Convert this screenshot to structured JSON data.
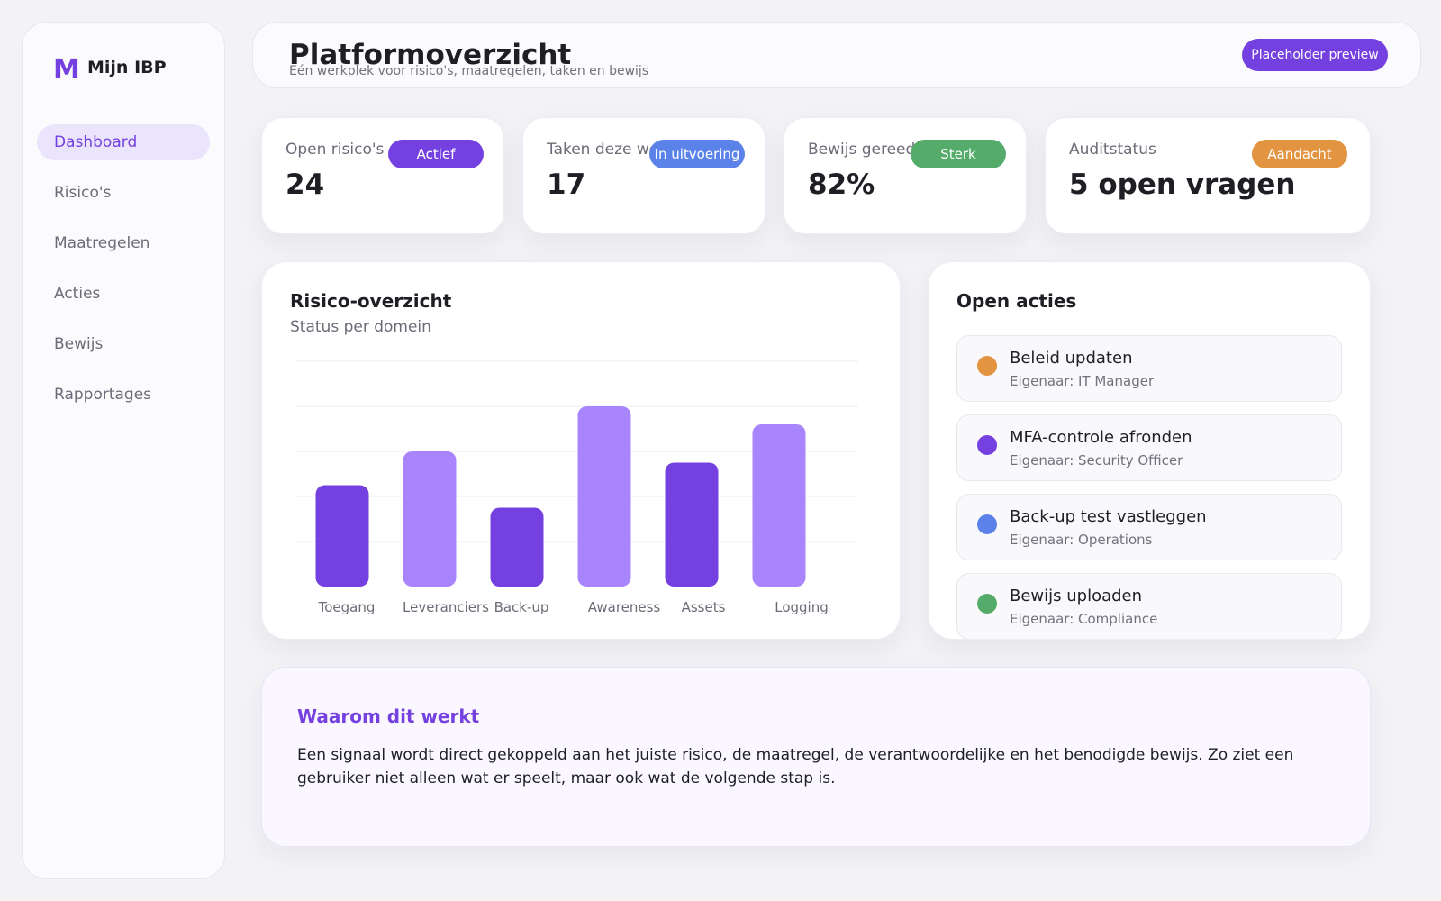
{
  "app": {
    "name": "Mijn IBP",
    "logo_letter": "M"
  },
  "sidebar": {
    "items": [
      {
        "label": "Dashboard",
        "active": true
      },
      {
        "label": "Risico's"
      },
      {
        "label": "Maatregelen"
      },
      {
        "label": "Acties"
      },
      {
        "label": "Bewijs"
      },
      {
        "label": "Rapportages"
      }
    ]
  },
  "header": {
    "title": "Platformoverzicht",
    "subtitle": "Eén werkplek voor risico's, maatregelen, taken en bewijs",
    "preview_label": "Placeholder preview"
  },
  "kpis": [
    {
      "label": "Open risico's",
      "value": "24",
      "badge": "Actief",
      "badge_color": "#7540e0"
    },
    {
      "label": "Taken deze week",
      "value": "17",
      "badge": "In uitvoering",
      "badge_color": "#5b82e8"
    },
    {
      "label": "Bewijs gereed",
      "value": "82%",
      "badge": "Sterk",
      "badge_color": "#55ab6a"
    },
    {
      "label": "Auditstatus",
      "value": "5 open vragen",
      "badge": "Aandacht",
      "badge_color": "#e39440"
    }
  ],
  "risk_panel": {
    "title": "Risico-overzicht",
    "subtitle": "Status per domein"
  },
  "chart_data": {
    "type": "bar",
    "categories": [
      "Toegang",
      "Leveranciers",
      "Back-up",
      "Awareness",
      "Assets",
      "Logging"
    ],
    "values": [
      2.25,
      3.0,
      1.75,
      4.0,
      2.75,
      3.6
    ],
    "ylim": [
      0,
      5
    ],
    "grid": true,
    "colors": [
      "#7540e0",
      "#a885fd",
      "#7540e0",
      "#a885fd",
      "#7540e0",
      "#a885fd"
    ]
  },
  "actions_panel": {
    "title": "Open acties",
    "items": [
      {
        "title": "Beleid updaten",
        "owner": "Eigenaar: IT Manager",
        "color": "#e39440"
      },
      {
        "title": "MFA-controle afronden",
        "owner": "Eigenaar: Security Officer",
        "color": "#7540e0"
      },
      {
        "title": "Back-up test vastleggen",
        "owner": "Eigenaar: Operations",
        "color": "#5b82e8"
      },
      {
        "title": "Bewijs uploaden",
        "owner": "Eigenaar: Compliance",
        "color": "#55ab6a"
      }
    ]
  },
  "info": {
    "title": "Waarom dit werkt",
    "text": "Een signaal wordt direct gekoppeld aan het juiste risico, de maatregel, de verantwoordelijke en het benodigde bewijs. Zo ziet een gebruiker niet alleen wat er speelt, maar ook wat de volgende stap is."
  }
}
